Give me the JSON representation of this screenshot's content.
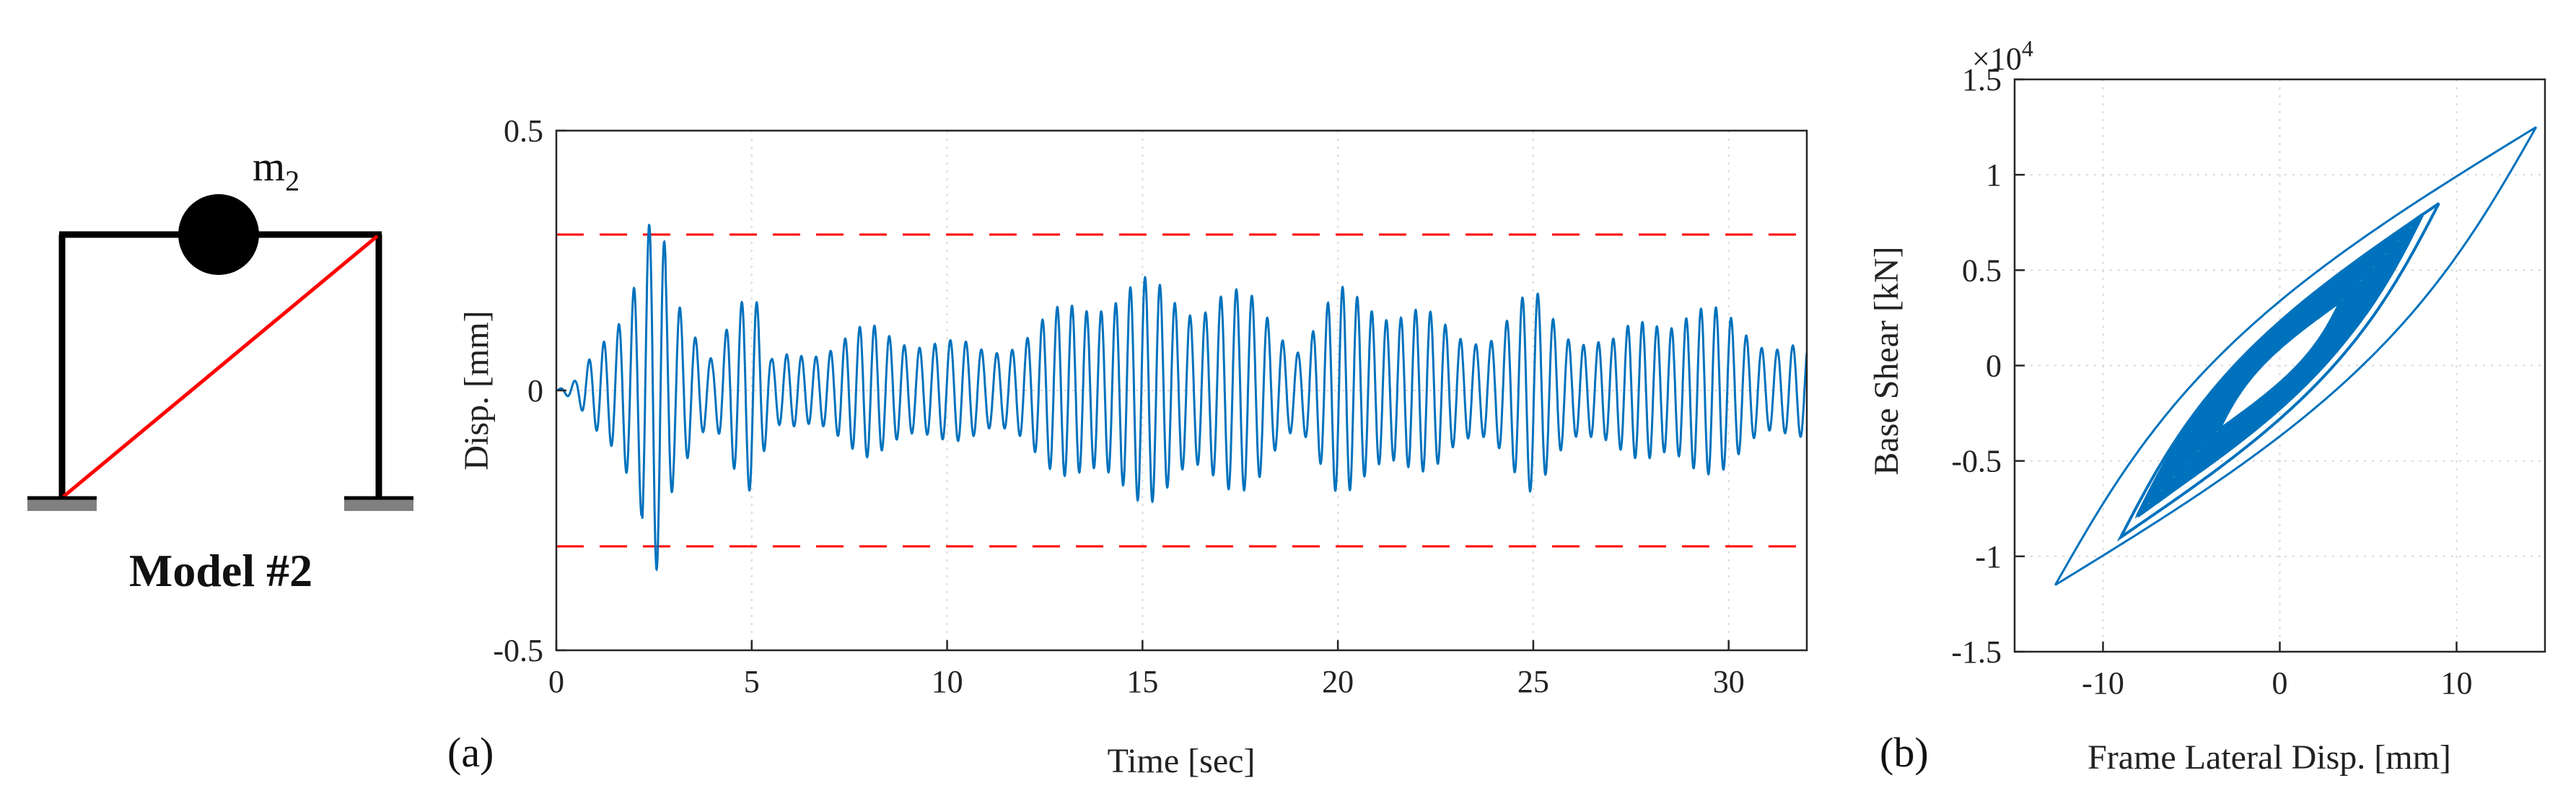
{
  "model": {
    "label": "Model #2",
    "mass_label": "m",
    "mass_subscript": "2"
  },
  "chart_data": [
    {
      "panel_label": "(a)",
      "type": "line",
      "title": "",
      "xlabel": "Time [sec]",
      "ylabel": "Disp. [mm]",
      "xlim": [
        0,
        32
      ],
      "ylim": [
        -0.5,
        0.5
      ],
      "xticks": [
        "0",
        "5",
        "10",
        "15",
        "20",
        "25",
        "30"
      ],
      "yticks": [
        "0.5",
        "0",
        "-0.5"
      ],
      "grid": true,
      "line_color": "#0072BD",
      "limit_lines": {
        "values": [
          0.3,
          -0.3
        ],
        "color": "#ff0000",
        "style": "dashed"
      },
      "envelope": {
        "x": [
          0,
          0.5,
          1.0,
          1.5,
          2.0,
          2.5,
          3.0,
          3.5,
          4.0,
          4.5,
          5.0,
          5.5,
          6,
          7,
          8,
          9,
          10,
          11,
          12,
          13,
          14,
          15,
          16,
          17,
          18,
          19,
          20,
          21,
          22,
          23,
          24,
          25,
          26,
          27,
          28,
          29,
          30,
          31,
          32
        ],
        "amplitude": [
          0,
          0.02,
          0.08,
          0.15,
          0.28,
          0.38,
          0.18,
          0.12,
          0.08,
          0.2,
          0.22,
          0.06,
          0.08,
          0.1,
          0.13,
          0.12,
          0.1,
          0.09,
          0.12,
          0.17,
          0.22,
          0.22,
          0.2,
          0.21,
          0.18,
          0.1,
          0.2,
          0.2,
          0.17,
          0.12,
          0.13,
          0.2,
          0.13,
          0.1,
          0.16,
          0.18,
          0.15,
          0.11,
          0.09
        ]
      },
      "frequency_hz": 2.6
    },
    {
      "panel_label": "(b)",
      "type": "line",
      "title": "",
      "xlabel": "Frame Lateral Disp. [mm]",
      "ylabel": "Base Shear [kN]",
      "exponent_label": "×10",
      "exponent_power": "4",
      "xlim": [
        -15,
        15
      ],
      "ylim": [
        -1.5,
        1.5
      ],
      "xticks": [
        "-10",
        "0",
        "10"
      ],
      "yticks": [
        "1.5",
        "1",
        "0.5",
        "0",
        "-0.5",
        "-1",
        "-1.5"
      ],
      "grid": true,
      "line_color": "#0072BD",
      "loops": [
        {
          "dmax": 14.5,
          "fmax": 1.25,
          "dmin": -12.7,
          "fmin": -1.15
        },
        {
          "dmax": 9.0,
          "fmax": 0.85,
          "dmin": -9.0,
          "fmin": -0.9
        },
        {
          "dmax": 8.0,
          "fmax": 0.78,
          "dmin": -8.0,
          "fmin": -0.78
        },
        {
          "dmax": 7.2,
          "fmax": 0.72,
          "dmin": -7.2,
          "fmin": -0.72
        },
        {
          "dmax": 6.5,
          "fmax": 0.65,
          "dmin": -6.5,
          "fmin": -0.65
        },
        {
          "dmax": 5.8,
          "fmax": 0.58,
          "dmin": -5.8,
          "fmin": -0.58
        },
        {
          "dmax": 5.0,
          "fmax": 0.5,
          "dmin": -5.0,
          "fmin": -0.5
        },
        {
          "dmax": 4.2,
          "fmax": 0.42,
          "dmin": -4.2,
          "fmin": -0.42
        }
      ]
    }
  ]
}
